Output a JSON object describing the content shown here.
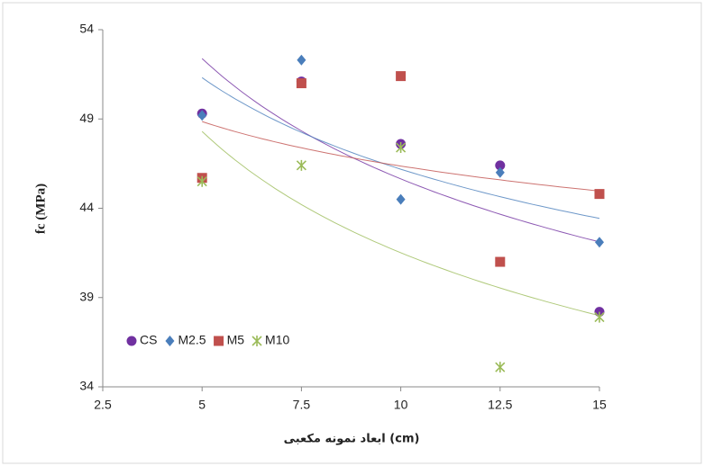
{
  "chart_data": {
    "type": "scatter",
    "x_label": "ابعاد نمونه مکعبی (cm)",
    "y_label": "fc (MPa)",
    "x": [
      5,
      7.5,
      10,
      12.5,
      15
    ],
    "xlim": [
      2.5,
      15
    ],
    "xticks": [
      2.5,
      5,
      7.5,
      10,
      12.5,
      15
    ],
    "ylim": [
      34,
      54
    ],
    "yticks": [
      34,
      39,
      44,
      49,
      54
    ],
    "trendline": "power",
    "legend": "lower left",
    "series": [
      {
        "name": "CS",
        "color": "#7030a0",
        "marker": "circle",
        "values": [
          49.3,
          51.1,
          47.6,
          46.4,
          38.2
        ]
      },
      {
        "name": "M2.5",
        "color": "#4a7ebb",
        "marker": "diamond",
        "values": [
          49.2,
          52.3,
          44.5,
          46.0,
          42.1
        ]
      },
      {
        "name": "M5",
        "color": "#c0504d",
        "marker": "square",
        "values": [
          45.7,
          51.0,
          51.4,
          41.0,
          44.8
        ]
      },
      {
        "name": "M10",
        "color": "#9bbb59",
        "marker": "asterisk",
        "values": [
          45.5,
          46.4,
          47.4,
          35.1,
          37.9
        ]
      }
    ]
  }
}
